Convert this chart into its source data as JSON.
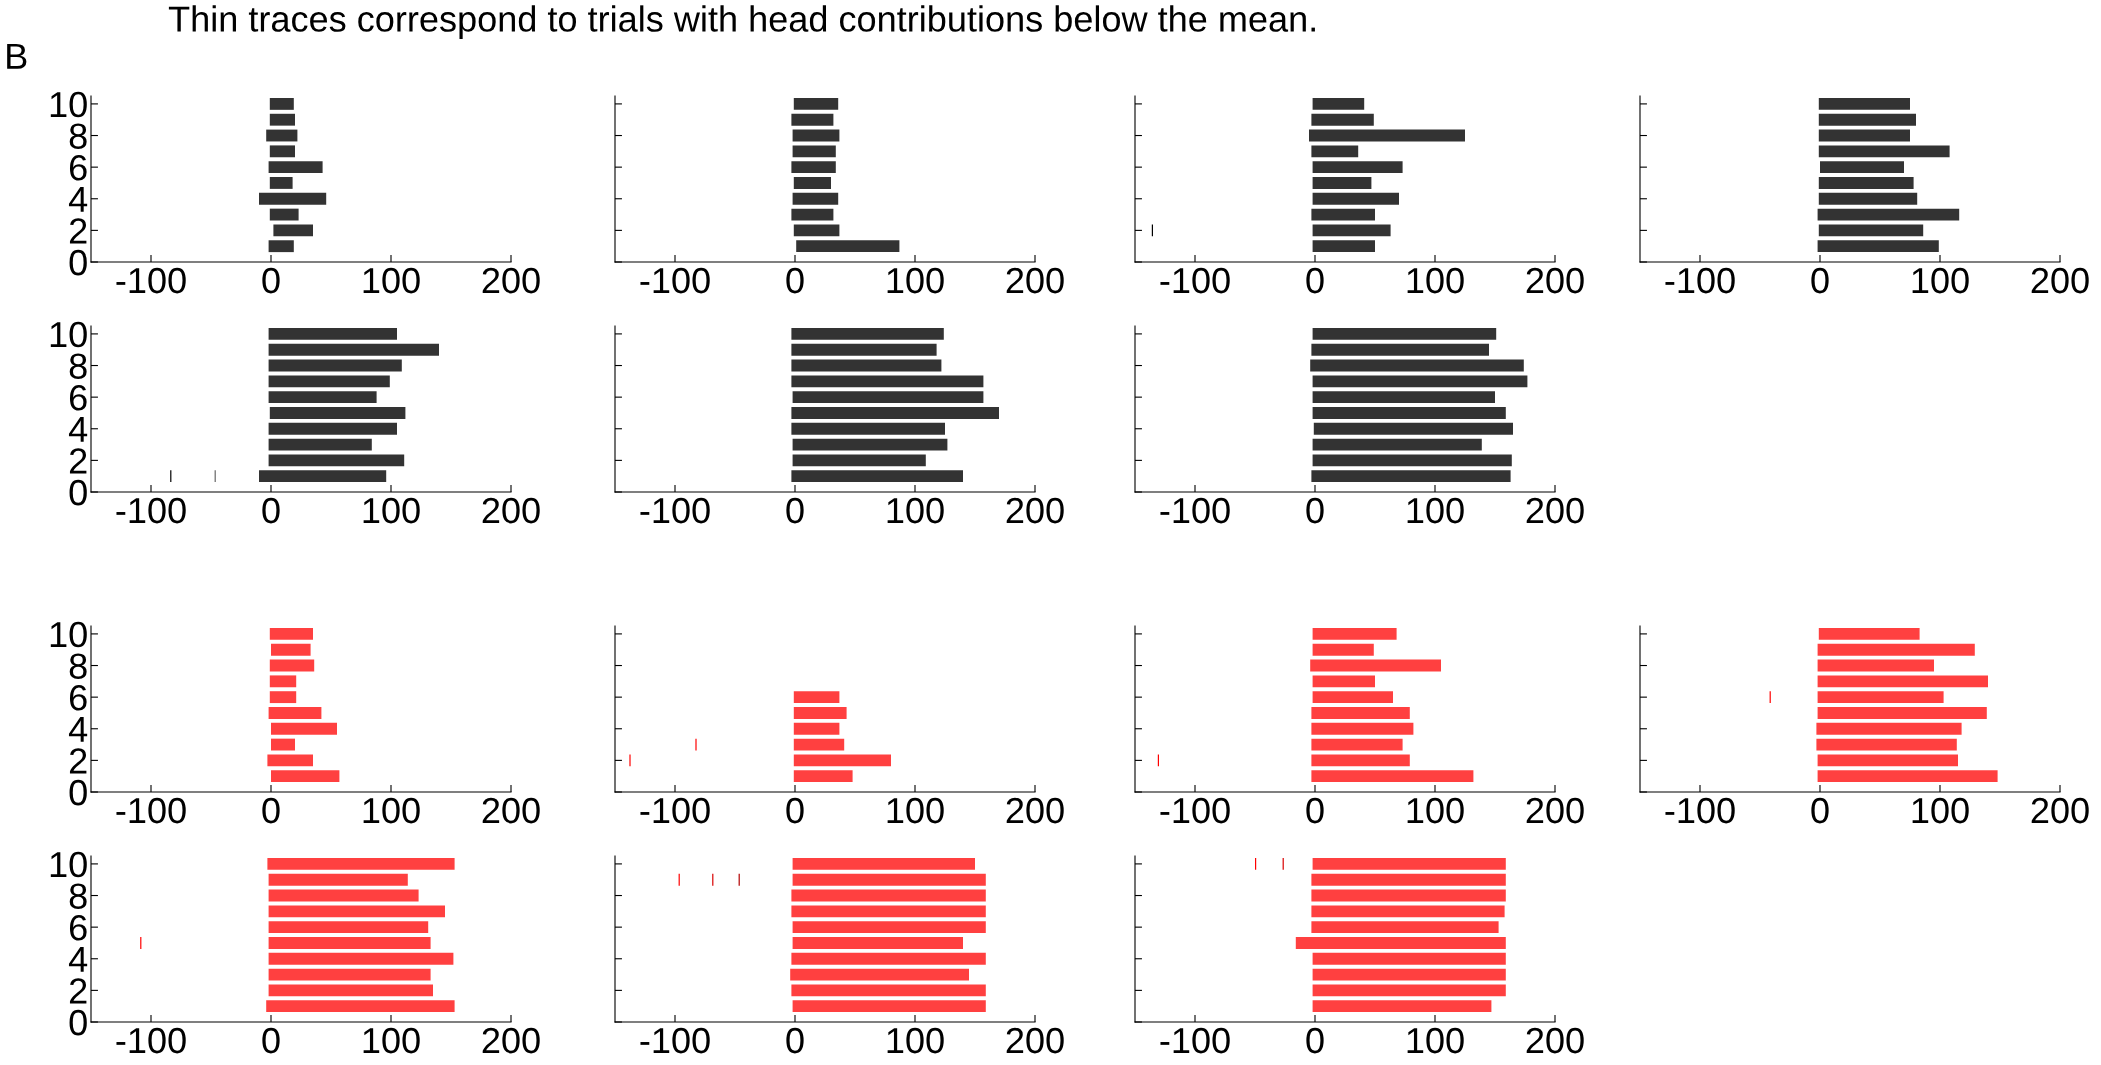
{
  "chart_data": [
    {
      "type": "bar",
      "orientation": "horizontal",
      "annotations": [
        "Thin traces correspond to trials with head contributions below the mean.",
        "B"
      ],
      "xlim": [
        -150,
        200
      ],
      "xticks": [
        -100,
        0,
        100,
        200
      ],
      "ylim": [
        0,
        10.5
      ],
      "yticks": [
        0,
        2,
        4,
        6,
        8,
        10
      ],
      "series": [
        {
          "type": "bar",
          "color": "#333333",
          "x": [
            1,
            2,
            3,
            4,
            5,
            6,
            7,
            8,
            9,
            10
          ],
          "base": [
            -2,
            2,
            -1,
            -10,
            -1,
            -2,
            -1,
            -4,
            -1,
            -1
          ],
          "values": [
            21,
            33,
            24,
            56,
            19,
            45,
            21,
            26,
            21,
            20
          ]
        }
      ]
    },
    {
      "type": "bar",
      "orientation": "horizontal",
      "tick_labels": "x",
      "xlim": [
        -150,
        200
      ],
      "xticks": [
        -100,
        0,
        100,
        200
      ],
      "ylim": [
        0,
        10.5
      ],
      "yticks": [
        0,
        2,
        4,
        6,
        8,
        10
      ],
      "series": [
        {
          "type": "bar",
          "color": "#333333",
          "x": [
            1,
            2,
            3,
            4,
            5,
            6,
            7,
            8,
            9,
            10
          ],
          "base": [
            1,
            -1,
            -3,
            -2,
            -1,
            -3,
            -2,
            -2,
            -3,
            -1
          ],
          "values": [
            86,
            38,
            35,
            38,
            31,
            37,
            36,
            39,
            35,
            37
          ]
        }
      ]
    },
    {
      "type": "bar",
      "orientation": "horizontal",
      "tick_labels": "x",
      "xlim": [
        -150,
        200
      ],
      "xticks": [
        -100,
        0,
        100,
        200
      ],
      "ylim": [
        0,
        10.5
      ],
      "yticks": [
        0,
        2,
        4,
        6,
        8,
        10
      ],
      "series": [
        {
          "type": "bar",
          "color": "#333333",
          "x": [
            1,
            2,
            3,
            4,
            5,
            6,
            7,
            8,
            9,
            10
          ],
          "base": [
            -2,
            -2,
            -3,
            -2,
            -2,
            -2,
            -3,
            -5,
            -3,
            -2
          ],
          "values": [
            52,
            65,
            53,
            72,
            49,
            75,
            39,
            130,
            52,
            43
          ]
        },
        {
          "type": "bar",
          "color": "#000000",
          "x": [
            2
          ],
          "base": [
            -136
          ],
          "values": [
            1
          ]
        }
      ]
    },
    {
      "type": "bar",
      "orientation": "horizontal",
      "tick_labels": "x",
      "xlim": [
        -150,
        200
      ],
      "xticks": [
        -100,
        0,
        100,
        200
      ],
      "ylim": [
        0,
        10.5
      ],
      "yticks": [
        0,
        2,
        4,
        6,
        8,
        10
      ],
      "series": [
        {
          "type": "bar",
          "color": "#333333",
          "x": [
            1,
            2,
            3,
            4,
            5,
            6,
            7,
            8,
            9,
            10
          ],
          "base": [
            -2,
            -1,
            -2,
            -1,
            -1,
            0,
            -1,
            -1,
            -1,
            -1
          ],
          "values": [
            101,
            87,
            118,
            82,
            79,
            70,
            109,
            76,
            81,
            76
          ]
        }
      ]
    },
    {
      "type": "bar",
      "orientation": "horizontal",
      "xlim": [
        -150,
        200
      ],
      "xticks": [
        -100,
        0,
        100,
        200
      ],
      "ylim": [
        0,
        10.5
      ],
      "yticks": [
        0,
        2,
        4,
        6,
        8,
        10
      ],
      "series": [
        {
          "type": "bar",
          "color": "#333333",
          "x": [
            1,
            2,
            3,
            4,
            5,
            6,
            7,
            8,
            9,
            10
          ],
          "base": [
            -10,
            -2,
            -2,
            -2,
            -1,
            -2,
            -2,
            -2,
            -2,
            -2
          ],
          "values": [
            106,
            113,
            86,
            107,
            113,
            90,
            101,
            111,
            142,
            107
          ]
        },
        {
          "type": "bar",
          "color": "#000000",
          "x": [
            1
          ],
          "base": [
            -84
          ],
          "values": [
            1
          ]
        },
        {
          "type": "bar",
          "color": "#666666",
          "x": [
            1
          ],
          "base": [
            -47
          ],
          "values": [
            1
          ]
        }
      ]
    },
    {
      "type": "bar",
      "orientation": "horizontal",
      "tick_labels": "x",
      "xlim": [
        -150,
        200
      ],
      "xticks": [
        -100,
        0,
        100,
        200
      ],
      "ylim": [
        0,
        10.5
      ],
      "yticks": [
        0,
        2,
        4,
        6,
        8,
        10
      ],
      "series": [
        {
          "type": "bar",
          "color": "#333333",
          "x": [
            1,
            2,
            3,
            4,
            5,
            6,
            7,
            8,
            9,
            10
          ],
          "base": [
            -3,
            -2,
            -2,
            -3,
            -3,
            -2,
            -3,
            -3,
            -3,
            -3
          ],
          "values": [
            143,
            111,
            129,
            128,
            173,
            159,
            160,
            125,
            121,
            127
          ]
        }
      ]
    },
    {
      "type": "bar",
      "orientation": "horizontal",
      "tick_labels": "x",
      "xlim": [
        -150,
        200
      ],
      "xticks": [
        -100,
        0,
        100,
        200
      ],
      "ylim": [
        0,
        10.5
      ],
      "yticks": [
        0,
        2,
        4,
        6,
        8,
        10
      ],
      "series": [
        {
          "type": "bar",
          "color": "#333333",
          "x": [
            1,
            2,
            3,
            4,
            5,
            6,
            7,
            8,
            9,
            10
          ],
          "base": [
            -3,
            -2,
            -2,
            -1,
            -2,
            -2,
            -2,
            -4,
            -3,
            -2
          ],
          "values": [
            166,
            166,
            141,
            166,
            161,
            152,
            179,
            178,
            148,
            153
          ]
        }
      ]
    },
    {
      "type": "bar",
      "orientation": "horizontal",
      "xlim": [
        -150,
        200
      ],
      "xticks": [
        -100,
        0,
        100,
        200
      ],
      "ylim": [
        0,
        10.5
      ],
      "yticks": [
        0,
        2,
        4,
        6,
        8,
        10
      ],
      "series": [
        {
          "type": "bar",
          "color": "#ff4040",
          "x": [
            1,
            2,
            3,
            4,
            5,
            6,
            7,
            8,
            9,
            10
          ],
          "base": [
            0,
            -3,
            0,
            0,
            -2,
            -1,
            -1,
            -1,
            0,
            -1
          ],
          "values": [
            57,
            38,
            20,
            55,
            44,
            22,
            22,
            37,
            33,
            36
          ]
        }
      ]
    },
    {
      "type": "bar",
      "orientation": "horizontal",
      "tick_labels": "x",
      "xlim": [
        -150,
        200
      ],
      "xticks": [
        -100,
        0,
        100,
        200
      ],
      "ylim": [
        0,
        10.5
      ],
      "yticks": [
        0,
        2,
        4,
        6,
        8,
        10
      ],
      "series": [
        {
          "type": "bar",
          "color": "#ff4040",
          "x": [
            1,
            2,
            3,
            4,
            5,
            6
          ],
          "base": [
            -1,
            -1,
            -1,
            -1,
            -1,
            -1
          ],
          "values": [
            49,
            81,
            42,
            38,
            44,
            38
          ]
        },
        {
          "type": "bar",
          "color": "#ff0000",
          "x": [
            2,
            3
          ],
          "base": [
            -138,
            -83
          ],
          "values": [
            1,
            1
          ]
        }
      ]
    },
    {
      "type": "bar",
      "orientation": "horizontal",
      "tick_labels": "x",
      "xlim": [
        -150,
        200
      ],
      "xticks": [
        -100,
        0,
        100,
        200
      ],
      "ylim": [
        0,
        10.5
      ],
      "yticks": [
        0,
        2,
        4,
        6,
        8,
        10
      ],
      "series": [
        {
          "type": "bar",
          "color": "#ff4040",
          "x": [
            1,
            2,
            3,
            4,
            5,
            6,
            7,
            8,
            9,
            10
          ],
          "base": [
            -3,
            -3,
            -3,
            -3,
            -3,
            -2,
            -2,
            -4,
            -2,
            -2
          ],
          "values": [
            135,
            82,
            76,
            85,
            82,
            67,
            52,
            109,
            51,
            70
          ]
        },
        {
          "type": "bar",
          "color": "#ff0000",
          "x": [
            2
          ],
          "base": [
            -131
          ],
          "values": [
            1
          ]
        }
      ]
    },
    {
      "type": "bar",
      "orientation": "horizontal",
      "tick_labels": "x",
      "xlim": [
        -150,
        200
      ],
      "xticks": [
        -100,
        0,
        100,
        200
      ],
      "ylim": [
        0,
        10.5
      ],
      "yticks": [
        0,
        2,
        4,
        6,
        8,
        10
      ],
      "series": [
        {
          "type": "bar",
          "color": "#ff4040",
          "x": [
            1,
            2,
            3,
            4,
            5,
            6,
            7,
            8,
            9,
            10
          ],
          "base": [
            -2,
            -2,
            -3,
            -3,
            -2,
            -2,
            -2,
            -2,
            -2,
            -1
          ],
          "values": [
            150,
            117,
            117,
            121,
            141,
            105,
            142,
            97,
            131,
            84
          ]
        },
        {
          "type": "bar",
          "color": "#ff0000",
          "x": [
            6
          ],
          "base": [
            -42
          ],
          "values": [
            1
          ]
        }
      ]
    },
    {
      "type": "bar",
      "orientation": "horizontal",
      "xlim": [
        -150,
        200
      ],
      "xticks": [
        -100,
        0,
        100,
        200
      ],
      "ylim": [
        0,
        10.5
      ],
      "yticks": [
        0,
        2,
        4,
        6,
        8,
        10
      ],
      "series": [
        {
          "type": "bar",
          "color": "#ff4040",
          "x": [
            1,
            2,
            3,
            4,
            5,
            6,
            7,
            8,
            9,
            10
          ],
          "base": [
            -4,
            -2,
            -2,
            -2,
            -2,
            -2,
            -2,
            -2,
            -2,
            -3
          ],
          "values": [
            157,
            137,
            135,
            154,
            135,
            133,
            147,
            125,
            116,
            156
          ]
        },
        {
          "type": "bar",
          "color": "#ff0000",
          "x": [
            5
          ],
          "base": [
            -109
          ],
          "values": [
            1
          ]
        }
      ]
    },
    {
      "type": "bar",
      "orientation": "horizontal",
      "tick_labels": "x",
      "xlim": [
        -150,
        200
      ],
      "xticks": [
        -100,
        0,
        100,
        200
      ],
      "ylim": [
        0,
        10.5
      ],
      "yticks": [
        0,
        2,
        4,
        6,
        8,
        10
      ],
      "series": [
        {
          "type": "bar",
          "color": "#ff4040",
          "x": [
            1,
            2,
            3,
            4,
            5,
            6,
            7,
            8,
            9,
            10
          ],
          "base": [
            -2,
            -3,
            -4,
            -3,
            -2,
            -2,
            -3,
            -3,
            -2,
            -2
          ],
          "values": [
            161,
            162,
            149,
            162,
            142,
            161,
            162,
            162,
            161,
            152
          ]
        },
        {
          "type": "bar",
          "color": "#ff0000",
          "x": [
            9
          ],
          "base": [
            -97
          ],
          "values": [
            1
          ]
        },
        {
          "type": "bar",
          "color": "#d90000",
          "x": [
            9
          ],
          "base": [
            -69
          ],
          "values": [
            1
          ]
        },
        {
          "type": "bar",
          "color": "#b30000",
          "x": [
            9
          ],
          "base": [
            -47
          ],
          "values": [
            1
          ]
        }
      ]
    },
    {
      "type": "bar",
      "orientation": "horizontal",
      "tick_labels": "x",
      "xlim": [
        -150,
        200
      ],
      "xticks": [
        -100,
        0,
        100,
        200
      ],
      "ylim": [
        0,
        10.5
      ],
      "yticks": [
        0,
        2,
        4,
        6,
        8,
        10
      ],
      "series": [
        {
          "type": "bar",
          "color": "#ff4040",
          "x": [
            1,
            2,
            3,
            4,
            5,
            6,
            7,
            8,
            9,
            10
          ],
          "base": [
            -2,
            -2,
            -2,
            -2,
            -16,
            -3,
            -3,
            -3,
            -3,
            -2
          ],
          "values": [
            149,
            161,
            161,
            161,
            175,
            156,
            161,
            162,
            162,
            161
          ]
        },
        {
          "type": "bar",
          "color": "#ff0000",
          "x": [
            10
          ],
          "base": [
            -50
          ],
          "values": [
            1
          ]
        },
        {
          "type": "bar",
          "color": "#d90000",
          "x": [
            10
          ],
          "base": [
            -27
          ],
          "values": [
            1
          ]
        }
      ]
    }
  ]
}
